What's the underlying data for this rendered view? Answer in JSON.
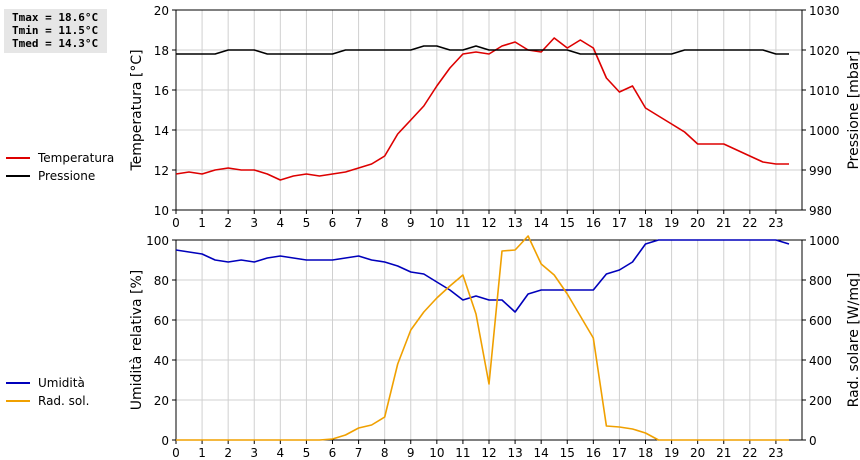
{
  "stats": {
    "tmax": "Tmax = 18.6°C",
    "tmin": "Tmin = 11.5°C",
    "tmed": "Tmed = 14.3°C"
  },
  "chart_data": [
    {
      "type": "line",
      "ylabel": "Temperatura [°C]",
      "y2label": "Pressione [mbar]",
      "xlim": [
        0,
        24
      ],
      "ylim": [
        10,
        20
      ],
      "y2lim": [
        980,
        1030
      ],
      "x_ticks": [
        "0",
        "1",
        "2",
        "3",
        "4",
        "5",
        "6",
        "7",
        "8",
        "9",
        "10",
        "11",
        "12",
        "13",
        "14",
        "15",
        "16",
        "17",
        "18",
        "19",
        "20",
        "21",
        "22",
        "23"
      ],
      "y_ticks": [
        "10",
        "12",
        "14",
        "16",
        "18",
        "20"
      ],
      "y2_ticks": [
        "980",
        "990",
        "1000",
        "1010",
        "1020",
        "1030"
      ],
      "grid": true,
      "legend_position": "left",
      "series": [
        {
          "name": "Temperatura",
          "color": "#dd0000",
          "axis": "left",
          "x": [
            0,
            0.5,
            1,
            1.5,
            2,
            2.5,
            3,
            3.5,
            4,
            4.5,
            5,
            5.5,
            6,
            6.5,
            7,
            7.5,
            8,
            8.5,
            9,
            9.5,
            10,
            10.5,
            11,
            11.5,
            12,
            12.5,
            13,
            13.5,
            14,
            14.5,
            15,
            15.5,
            16,
            16.5,
            17,
            17.5,
            18,
            18.5,
            19,
            19.5,
            20,
            20.5,
            21,
            21.5,
            22,
            22.5,
            23,
            23.5
          ],
          "values": [
            11.8,
            11.9,
            11.8,
            12.0,
            12.1,
            12.0,
            12.0,
            11.8,
            11.5,
            11.7,
            11.8,
            11.7,
            11.8,
            11.9,
            12.1,
            12.3,
            12.7,
            13.8,
            14.5,
            15.2,
            16.2,
            17.1,
            17.8,
            17.9,
            17.8,
            18.2,
            18.4,
            18.0,
            17.9,
            18.6,
            18.1,
            18.5,
            18.1,
            16.6,
            15.9,
            16.2,
            15.1,
            14.7,
            14.3,
            13.9,
            13.3,
            13.3,
            13.3,
            13.0,
            12.7,
            12.4,
            12.3,
            12.3
          ]
        },
        {
          "name": "Pressione",
          "color": "#000000",
          "axis": "right",
          "x": [
            0,
            0.5,
            1,
            1.5,
            2,
            2.5,
            3,
            3.5,
            4,
            4.5,
            5,
            5.5,
            6,
            6.5,
            7,
            7.5,
            8,
            8.5,
            9,
            9.5,
            10,
            10.5,
            11,
            11.5,
            12,
            12.5,
            13,
            13.5,
            14,
            14.5,
            15,
            15.5,
            16,
            16.5,
            17,
            17.5,
            18,
            18.5,
            19,
            19.5,
            20,
            20.5,
            21,
            21.5,
            22,
            22.5,
            23,
            23.5
          ],
          "values": [
            1019,
            1019,
            1019,
            1019,
            1020,
            1020,
            1020,
            1019,
            1019,
            1019,
            1019,
            1019,
            1019,
            1020,
            1020,
            1020,
            1020,
            1020,
            1020,
            1021,
            1021,
            1020,
            1020,
            1021,
            1020,
            1020,
            1020,
            1020,
            1020,
            1020,
            1020,
            1019,
            1019,
            1019,
            1019,
            1019,
            1019,
            1019,
            1019,
            1020,
            1020,
            1020,
            1020,
            1020,
            1020,
            1020,
            1019,
            1019
          ]
        }
      ]
    },
    {
      "type": "line",
      "ylabel": "Umidità relativa [%]",
      "y2label": "Rad. solare [W/mq]",
      "xlim": [
        0,
        24
      ],
      "ylim": [
        0,
        100
      ],
      "y2lim": [
        0,
        1000
      ],
      "x_ticks": [
        "0",
        "1",
        "2",
        "3",
        "4",
        "5",
        "6",
        "7",
        "8",
        "9",
        "10",
        "11",
        "12",
        "13",
        "14",
        "15",
        "16",
        "17",
        "18",
        "19",
        "20",
        "21",
        "22",
        "23"
      ],
      "y_ticks": [
        "0",
        "20",
        "40",
        "60",
        "80",
        "100"
      ],
      "y2_ticks": [
        "0",
        "200",
        "400",
        "600",
        "800",
        "1000"
      ],
      "grid": true,
      "legend_position": "left",
      "series": [
        {
          "name": "Umidità",
          "color": "#0000bb",
          "axis": "left",
          "x": [
            0,
            0.5,
            1,
            1.5,
            2,
            2.5,
            3,
            3.5,
            4,
            4.5,
            5,
            5.5,
            6,
            6.5,
            7,
            7.5,
            8,
            8.5,
            9,
            9.5,
            10,
            10.5,
            11,
            11.5,
            12,
            12.5,
            13,
            13.5,
            14,
            14.5,
            15,
            15.5,
            16,
            16.5,
            17,
            17.5,
            18,
            18.5,
            19,
            19.5,
            20,
            20.5,
            21,
            21.5,
            22,
            22.5,
            23,
            23.5
          ],
          "values": [
            95,
            94,
            93,
            90,
            89,
            90,
            89,
            91,
            92,
            91,
            90,
            90,
            90,
            91,
            92,
            90,
            89,
            87,
            84,
            83,
            79,
            75,
            70,
            72,
            70,
            70,
            64,
            73,
            75,
            75,
            75,
            75,
            75,
            83,
            85,
            89,
            98,
            100,
            100,
            100,
            100,
            100,
            100,
            100,
            100,
            100,
            100,
            98
          ]
        },
        {
          "name": "Rad. sol.",
          "color": "#f0a000",
          "axis": "right",
          "x": [
            0,
            0.5,
            1,
            1.5,
            2,
            2.5,
            3,
            3.5,
            4,
            4.5,
            5,
            5.5,
            6,
            6.5,
            7,
            7.5,
            8,
            8.5,
            9,
            9.5,
            10,
            10.5,
            11,
            11.5,
            12,
            12.5,
            13,
            13.5,
            14,
            14.5,
            15,
            15.5,
            16,
            16.5,
            17,
            17.5,
            18,
            18.5,
            19,
            19.5,
            20,
            20.5,
            21,
            21.5,
            22,
            22.5,
            23,
            23.5
          ],
          "values": [
            0,
            0,
            0,
            0,
            0,
            0,
            0,
            0,
            0,
            0,
            0,
            0,
            5,
            25,
            60,
            75,
            115,
            380,
            550,
            640,
            710,
            770,
            825,
            630,
            280,
            945,
            950,
            1020,
            880,
            825,
            730,
            620,
            510,
            70,
            65,
            55,
            35,
            0,
            0,
            0,
            0,
            0,
            0,
            0,
            0,
            0,
            0,
            0
          ]
        }
      ]
    }
  ]
}
